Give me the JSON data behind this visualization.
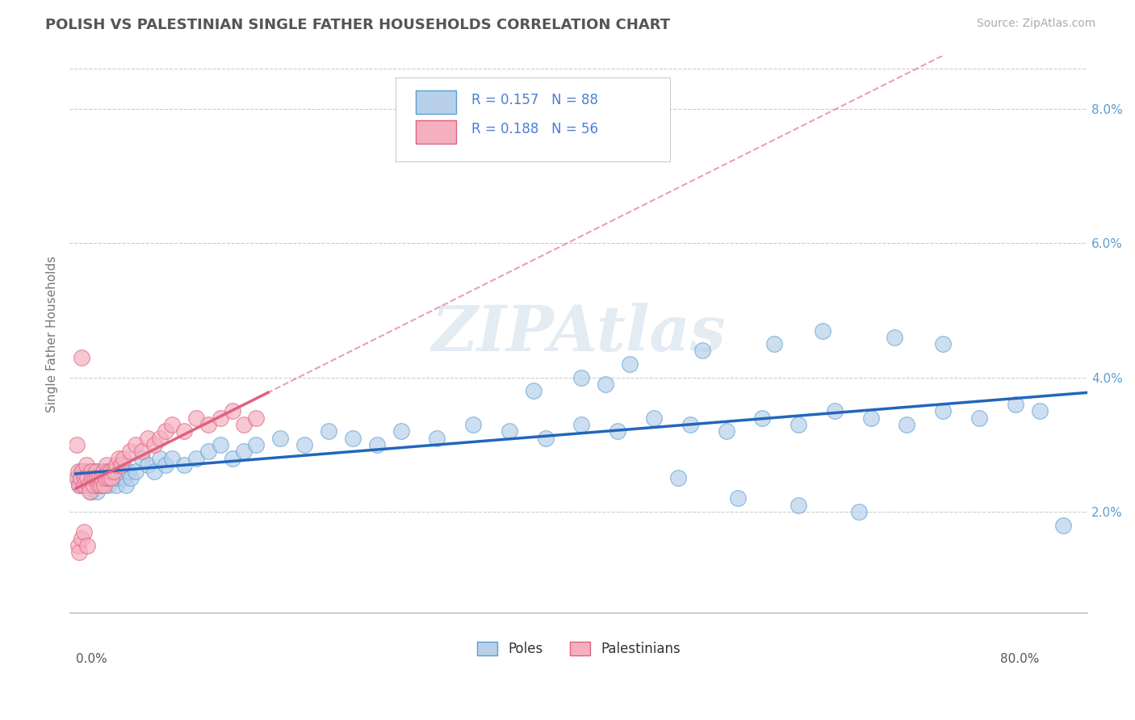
{
  "title": "POLISH VS PALESTINIAN SINGLE FATHER HOUSEHOLDS CORRELATION CHART",
  "source_text": "Source: ZipAtlas.com",
  "ylabel": "Single Father Households",
  "right_ytick_vals": [
    0.02,
    0.04,
    0.06,
    0.08
  ],
  "ymin": 0.005,
  "ymax": 0.088,
  "xmin": -0.005,
  "xmax": 0.84,
  "legend_r_poles": "R = 0.157",
  "legend_n_poles": "N = 88",
  "legend_r_palestinians": "R = 0.188",
  "legend_n_palestinians": "N = 56",
  "poles_color": "#b8d0ea",
  "palestinians_color": "#f5b0c0",
  "poles_edge_color": "#5a9fd4",
  "palestinians_edge_color": "#e06080",
  "poles_line_color": "#2266bb",
  "palestinians_line_color": "#e06080",
  "watermark": "ZIPAtlas",
  "legend_text_color": "#4a7fd4",
  "title_color": "#555555",
  "axis_label_color": "#5a9fd4",
  "poles_x": [
    0.002,
    0.003,
    0.004,
    0.005,
    0.006,
    0.007,
    0.008,
    0.009,
    0.01,
    0.011,
    0.012,
    0.013,
    0.014,
    0.015,
    0.016,
    0.017,
    0.018,
    0.019,
    0.02,
    0.021,
    0.022,
    0.023,
    0.024,
    0.025,
    0.026,
    0.027,
    0.028,
    0.03,
    0.032,
    0.034,
    0.036,
    0.038,
    0.04,
    0.042,
    0.044,
    0.046,
    0.05,
    0.055,
    0.06,
    0.065,
    0.07,
    0.075,
    0.08,
    0.09,
    0.1,
    0.11,
    0.12,
    0.13,
    0.14,
    0.15,
    0.17,
    0.19,
    0.21,
    0.23,
    0.25,
    0.27,
    0.3,
    0.33,
    0.36,
    0.39,
    0.42,
    0.45,
    0.48,
    0.51,
    0.54,
    0.57,
    0.6,
    0.63,
    0.66,
    0.69,
    0.72,
    0.75,
    0.78,
    0.8,
    0.82,
    0.42,
    0.46,
    0.52,
    0.58,
    0.62,
    0.68,
    0.72,
    0.38,
    0.44,
    0.5,
    0.55,
    0.6,
    0.65
  ],
  "poles_y": [
    0.025,
    0.024,
    0.026,
    0.025,
    0.024,
    0.026,
    0.025,
    0.024,
    0.026,
    0.025,
    0.024,
    0.023,
    0.025,
    0.024,
    0.026,
    0.025,
    0.023,
    0.026,
    0.025,
    0.024,
    0.026,
    0.025,
    0.024,
    0.026,
    0.025,
    0.024,
    0.025,
    0.026,
    0.025,
    0.024,
    0.025,
    0.026,
    0.025,
    0.024,
    0.026,
    0.025,
    0.026,
    0.028,
    0.027,
    0.026,
    0.028,
    0.027,
    0.028,
    0.027,
    0.028,
    0.029,
    0.03,
    0.028,
    0.029,
    0.03,
    0.031,
    0.03,
    0.032,
    0.031,
    0.03,
    0.032,
    0.031,
    0.033,
    0.032,
    0.031,
    0.033,
    0.032,
    0.034,
    0.033,
    0.032,
    0.034,
    0.033,
    0.035,
    0.034,
    0.033,
    0.035,
    0.034,
    0.036,
    0.035,
    0.018,
    0.04,
    0.042,
    0.044,
    0.045,
    0.047,
    0.046,
    0.045,
    0.038,
    0.039,
    0.025,
    0.022,
    0.021,
    0.02
  ],
  "palestinians_x": [
    0.001,
    0.002,
    0.003,
    0.004,
    0.005,
    0.006,
    0.007,
    0.008,
    0.009,
    0.01,
    0.011,
    0.012,
    0.013,
    0.014,
    0.015,
    0.016,
    0.017,
    0.018,
    0.019,
    0.02,
    0.021,
    0.022,
    0.023,
    0.024,
    0.025,
    0.026,
    0.027,
    0.028,
    0.029,
    0.03,
    0.032,
    0.034,
    0.036,
    0.038,
    0.04,
    0.045,
    0.05,
    0.055,
    0.06,
    0.065,
    0.07,
    0.075,
    0.08,
    0.09,
    0.1,
    0.11,
    0.12,
    0.13,
    0.14,
    0.15,
    0.001,
    0.002,
    0.003,
    0.005,
    0.007,
    0.01
  ],
  "palestinians_y": [
    0.025,
    0.026,
    0.024,
    0.025,
    0.043,
    0.026,
    0.024,
    0.025,
    0.027,
    0.025,
    0.024,
    0.023,
    0.026,
    0.025,
    0.024,
    0.025,
    0.026,
    0.025,
    0.024,
    0.025,
    0.024,
    0.025,
    0.026,
    0.024,
    0.025,
    0.027,
    0.026,
    0.025,
    0.026,
    0.025,
    0.026,
    0.027,
    0.028,
    0.027,
    0.028,
    0.029,
    0.03,
    0.029,
    0.031,
    0.03,
    0.031,
    0.032,
    0.033,
    0.032,
    0.034,
    0.033,
    0.034,
    0.035,
    0.033,
    0.034,
    0.03,
    0.015,
    0.014,
    0.016,
    0.017,
    0.015
  ]
}
